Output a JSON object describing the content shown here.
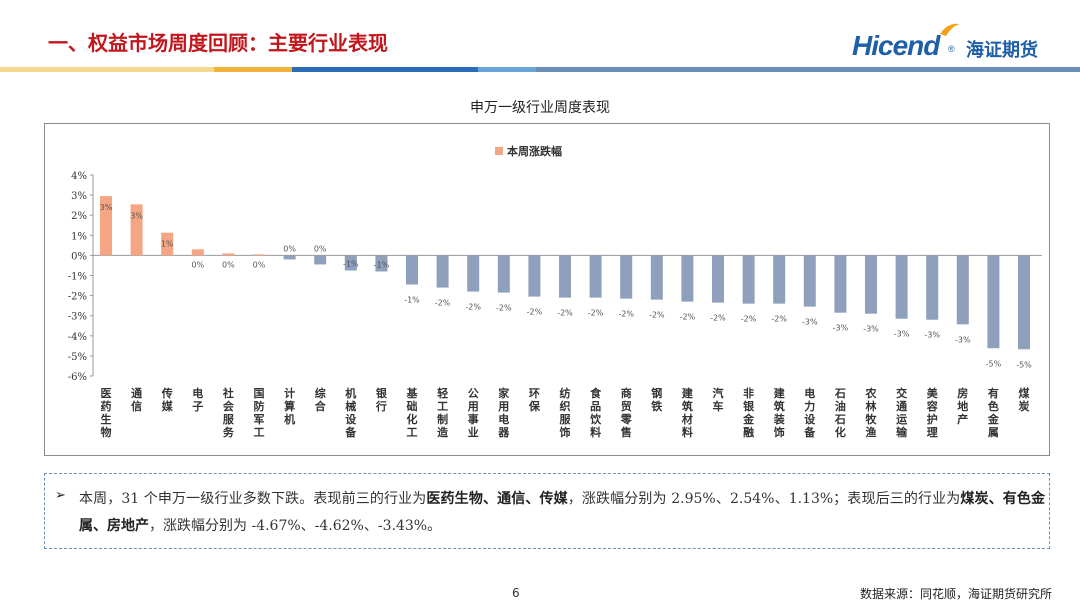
{
  "header": {
    "title": "一、权益市场周度回顾：主要行业表现",
    "logo_text": "Hicend",
    "logo_reg": "®",
    "logo_cn": "海证期货"
  },
  "colors": {
    "title": "#c0171d",
    "brand": "#1e5fa8",
    "positive_bar": "#f4a582",
    "negative_bar": "#8fa0bd",
    "band_segments": [
      "#f6d98f",
      "#f2b33d",
      "#2b6cb6",
      "#6aa4d9",
      "#6a8fb7"
    ]
  },
  "chart_data": {
    "type": "bar",
    "title": "申万一级行业周度表现",
    "legend": [
      "本周涨跌幅"
    ],
    "legend_position": "top-center",
    "ylim": [
      -6,
      4
    ],
    "yticks": [
      "4%",
      "3%",
      "2%",
      "1%",
      "0%",
      "-1%",
      "-2%",
      "-3%",
      "-4%",
      "-5%",
      "-6%"
    ],
    "categories": [
      "医药生物",
      "通信",
      "传媒",
      "电子",
      "社会服务",
      "国防军工",
      "计算机",
      "综合",
      "机械设备",
      "银行",
      "基础化工",
      "轻工制造",
      "公用事业",
      "家用电器",
      "环保",
      "纺织服饰",
      "食品饮料",
      "商贸零售",
      "钢铁",
      "建筑材料",
      "汽车",
      "非银金融",
      "建筑装饰",
      "电力设备",
      "石油石化",
      "农林牧渔",
      "交通运输",
      "美容护理",
      "房地产",
      "有色金属",
      "煤炭"
    ],
    "series": [
      {
        "name": "本周涨跌幅",
        "values": [
          2.95,
          2.54,
          1.13,
          0.3,
          0.1,
          0.05,
          -0.2,
          -0.45,
          -0.75,
          -0.8,
          -1.45,
          -1.6,
          -1.8,
          -1.85,
          -2.05,
          -2.1,
          -2.1,
          -2.15,
          -2.2,
          -2.3,
          -2.35,
          -2.4,
          -2.4,
          -2.55,
          -2.85,
          -2.9,
          -3.15,
          -3.2,
          -3.43,
          -4.62,
          -4.67
        ],
        "labels": [
          "3%",
          "3%",
          "1%",
          "0%",
          "0%",
          "0%",
          "0%",
          "0%",
          "-1%",
          "-1%",
          "-1%",
          "-2%",
          "-2%",
          "-2%",
          "-2%",
          "-2%",
          "-2%",
          "-2%",
          "-2%",
          "-2%",
          "-2%",
          "-2%",
          "-2%",
          "-3%",
          "-3%",
          "-3%",
          "-3%",
          "-3%",
          "-3%",
          "-5%",
          "-5%"
        ]
      }
    ],
    "grid": false
  },
  "note": {
    "bullet": "➢",
    "segments": [
      {
        "text": "本周，31 个申万一级行业多数下跌。表现前三的行业为",
        "bold": false
      },
      {
        "text": "医药生物、通信、传媒",
        "bold": true
      },
      {
        "text": "，涨跌幅分别为 2.95%、2.54%、1.13%；表现后三的行业为",
        "bold": false
      },
      {
        "text": "煤炭、有色金属、房地产",
        "bold": true
      },
      {
        "text": "，涨跌幅分别为 -4.67%、-4.62%、-3.43%。",
        "bold": false
      }
    ]
  },
  "footer": {
    "page": "6",
    "source": "数据来源：同花顺，海证期货研究所"
  }
}
